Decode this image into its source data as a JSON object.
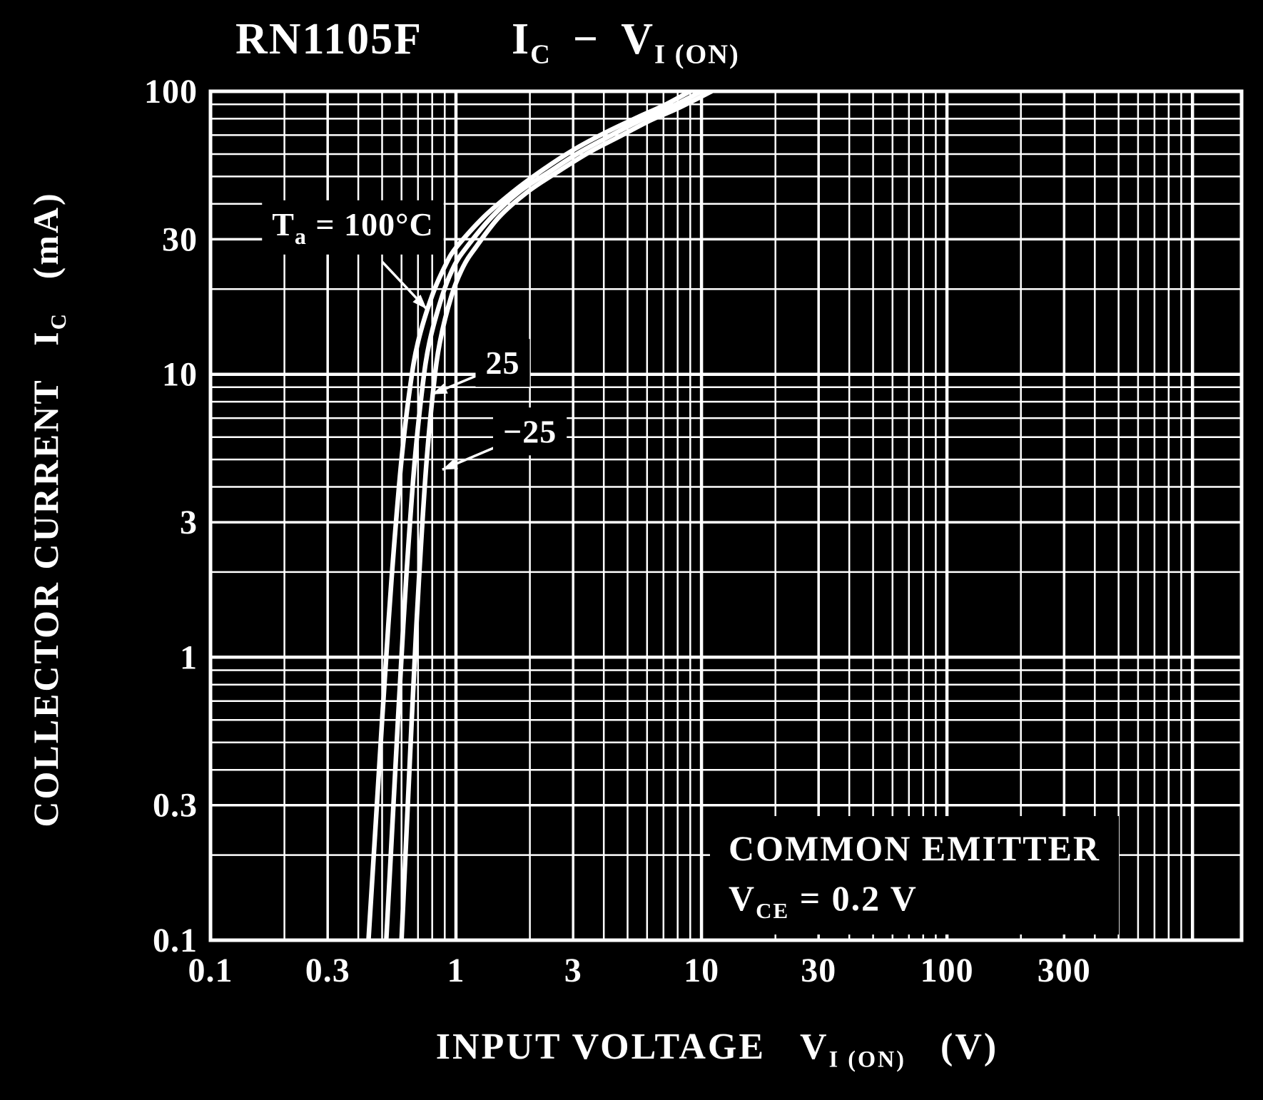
{
  "page": {
    "background": "#000000",
    "foreground": "#ffffff"
  },
  "title": {
    "device": "RN1105F",
    "y_symbol": "I",
    "y_sub": "C",
    "separator": "−",
    "x_symbol": "V",
    "x_sub": "I (ON)"
  },
  "axis": {
    "y_label_prefix": "COLLECTOR CURRENT",
    "y_symbol": "I",
    "y_sym_sub": "C",
    "y_unit": "(mA)",
    "x_label_prefix": "INPUT VOLTAGE",
    "x_symbol": "V",
    "x_sym_sub": "I (ON)",
    "x_unit": "(V)"
  },
  "conditions": {
    "line1": "COMMON EMITTER",
    "v_symbol": "V",
    "v_sub": "CE",
    "v_value": " = 0.2 V"
  },
  "chart_data": {
    "type": "line",
    "title": "RN1105F  IC − VI(ON)",
    "xlabel": "INPUT VOLTAGE VI(ON) (V)",
    "ylabel": "COLLECTOR CURRENT IC (mA)",
    "log_x": true,
    "log_y": true,
    "xlim": [
      0.1,
      1585
    ],
    "ylim": [
      0.1,
      100
    ],
    "xticks": [
      "0.1",
      "0.3",
      "1",
      "3",
      "10",
      "30",
      "100",
      "300"
    ],
    "xtick_values": [
      0.1,
      0.3,
      1,
      3,
      10,
      30,
      100,
      300
    ],
    "yticks": [
      "100",
      "30",
      "10",
      "3",
      "1",
      "0.3",
      "0.1"
    ],
    "ytick_values": [
      100,
      30,
      10,
      3,
      1,
      0.3,
      0.1
    ],
    "grid": true,
    "series": [
      {
        "id": "ta-100c",
        "name": "Ta = 100°C",
        "points": [
          [
            0.44,
            0.1
          ],
          [
            0.47,
            0.25
          ],
          [
            0.5,
            0.6
          ],
          [
            0.53,
            1.3
          ],
          [
            0.56,
            2.5
          ],
          [
            0.6,
            5
          ],
          [
            0.65,
            9
          ],
          [
            0.7,
            13
          ],
          [
            0.8,
            19
          ],
          [
            0.9,
            24
          ],
          [
            1.0,
            28
          ],
          [
            1.3,
            36
          ],
          [
            1.7,
            44
          ],
          [
            2.2,
            52
          ],
          [
            3.0,
            62
          ],
          [
            4.0,
            71
          ],
          [
            5.5,
            81
          ],
          [
            7.0,
            89
          ],
          [
            9.0,
            100
          ]
        ]
      },
      {
        "id": "ta-25c",
        "name": "Ta = 25°C",
        "points": [
          [
            0.52,
            0.1
          ],
          [
            0.55,
            0.25
          ],
          [
            0.58,
            0.6
          ],
          [
            0.61,
            1.3
          ],
          [
            0.64,
            2.5
          ],
          [
            0.68,
            5
          ],
          [
            0.73,
            9
          ],
          [
            0.78,
            13
          ],
          [
            0.88,
            19
          ],
          [
            0.98,
            24
          ],
          [
            1.1,
            28
          ],
          [
            1.4,
            36
          ],
          [
            1.8,
            44
          ],
          [
            2.4,
            52
          ],
          [
            3.2,
            61
          ],
          [
            4.3,
            70
          ],
          [
            5.8,
            80
          ],
          [
            7.5,
            88
          ],
          [
            10,
            100
          ]
        ]
      },
      {
        "id": "ta-minus-25c",
        "name": "Ta = −25°C",
        "points": [
          [
            0.6,
            0.1
          ],
          [
            0.63,
            0.25
          ],
          [
            0.66,
            0.6
          ],
          [
            0.69,
            1.3
          ],
          [
            0.72,
            2.5
          ],
          [
            0.76,
            5
          ],
          [
            0.81,
            9
          ],
          [
            0.86,
            13
          ],
          [
            0.96,
            19
          ],
          [
            1.07,
            24
          ],
          [
            1.2,
            28
          ],
          [
            1.5,
            36
          ],
          [
            1.95,
            44
          ],
          [
            2.6,
            52
          ],
          [
            3.5,
            61
          ],
          [
            4.6,
            69
          ],
          [
            6.2,
            79
          ],
          [
            8.0,
            87
          ],
          [
            11,
            100
          ]
        ]
      }
    ],
    "annotations": [
      {
        "id": "label-100c",
        "parts": [
          [
            "T",
            false
          ],
          [
            "a",
            true
          ],
          [
            " = 100°C",
            false
          ]
        ],
        "pos": [
          0.38,
          34
        ],
        "arrow_from": [
          0.5,
          25
        ],
        "arrow_to": [
          0.76,
          17
        ]
      },
      {
        "id": "label-25c",
        "parts": [
          [
            "25",
            false
          ]
        ],
        "pos": [
          1.55,
          11
        ],
        "arrow_from": [
          1.25,
          10
        ],
        "arrow_to": [
          0.8,
          8.5
        ]
      },
      {
        "id": "label-minus-25c",
        "parts": [
          [
            "−25",
            false
          ]
        ],
        "pos": [
          2.0,
          6.3
        ],
        "arrow_from": [
          1.5,
          5.6
        ],
        "arrow_to": [
          0.88,
          4.6
        ]
      }
    ]
  }
}
